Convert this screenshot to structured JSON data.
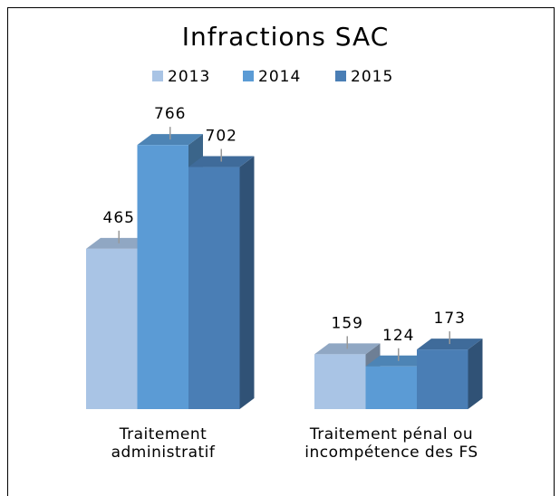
{
  "chart_data": {
    "type": "bar3d",
    "title": "Infractions SAC",
    "categories": [
      "Traitement administratif",
      "Traitement pénal ou incompétence des FS"
    ],
    "series": [
      {
        "name": "2013",
        "color": "#a9c4e5",
        "values": [
          465,
          159
        ]
      },
      {
        "name": "2014",
        "color": "#5b9bd5",
        "values": [
          766,
          124
        ]
      },
      {
        "name": "2015",
        "color": "#4a7eb5",
        "values": [
          702,
          173
        ]
      }
    ],
    "legend": "top"
  }
}
